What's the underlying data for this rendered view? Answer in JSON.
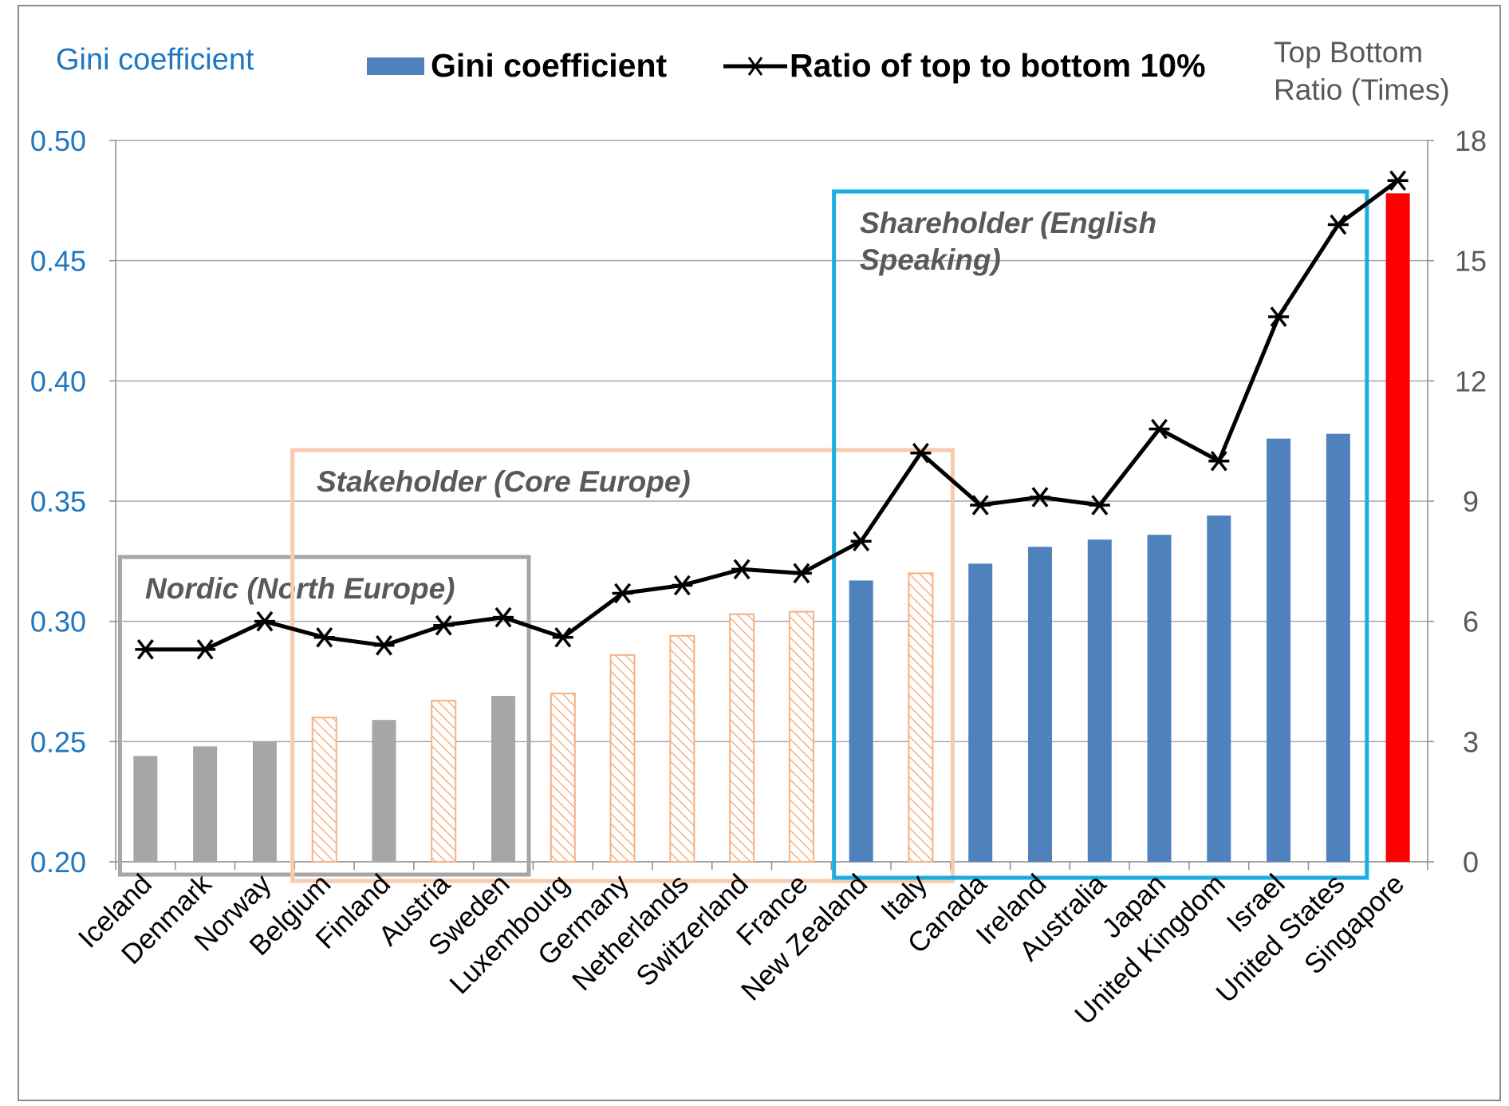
{
  "chart_data": {
    "type": "bar+line",
    "y_left_title": "Gini coefficient",
    "y_right_title": [
      "Top Bottom",
      "Ratio (Times)"
    ],
    "y_left_lim": [
      0.2,
      0.5
    ],
    "y_left_ticks": [
      "0.50",
      "0.45",
      "0.40",
      "0.35",
      "0.30",
      "0.25",
      "0.20"
    ],
    "y_right_lim": [
      0,
      18
    ],
    "y_right_ticks": [
      "18",
      "15",
      "12",
      "9",
      "6",
      "3",
      "0"
    ],
    "grid": true,
    "legend": {
      "placement": "top",
      "entries": [
        "Gini coefficient",
        "Ratio of top to bottom 10%"
      ]
    },
    "categories": [
      "Iceland",
      "Denmark",
      "Norway",
      "Belgium",
      "Finland",
      "Austria",
      "Sweden",
      "Luxembourg",
      "Germany",
      "Netherlands",
      "Switzerland",
      "France",
      "New Zealand",
      "Italy",
      "Canada",
      "Ireland",
      "Australia",
      "Japan",
      "United Kingdom",
      "Israel",
      "United States",
      "Singapore"
    ],
    "series": [
      {
        "name": "Gini coefficient",
        "type": "bar",
        "axis": "left",
        "values": [
          0.244,
          0.248,
          0.25,
          0.26,
          0.259,
          0.267,
          0.269,
          0.27,
          0.286,
          0.294,
          0.303,
          0.304,
          0.317,
          0.32,
          0.324,
          0.331,
          0.334,
          0.336,
          0.344,
          0.376,
          0.378,
          0.478
        ]
      },
      {
        "name": "Ratio of top to bottom 10%",
        "type": "line",
        "axis": "right",
        "values": [
          5.3,
          5.3,
          6.0,
          5.6,
          5.4,
          5.9,
          6.1,
          5.6,
          6.7,
          6.9,
          7.3,
          7.2,
          8.0,
          10.2,
          8.9,
          9.1,
          8.9,
          10.8,
          10.0,
          13.6,
          15.9,
          17.0
        ]
      }
    ],
    "bar_styles": [
      "gray",
      "gray",
      "gray",
      "hatch",
      "gray",
      "hatch",
      "gray",
      "hatch",
      "hatch",
      "hatch",
      "hatch",
      "hatch",
      "blue",
      "hatch",
      "blue",
      "blue",
      "blue",
      "blue",
      "blue",
      "blue",
      "blue",
      "red"
    ],
    "colors": {
      "gray": "#a6a6a6",
      "blue": "#4f81bd",
      "hatch": "#f4b183",
      "red": "#ff0000",
      "line": "#000000",
      "nordic_box": "#a6a6a6",
      "stakeholder_box": "#f8cbad",
      "shareholder_box": "#1aaee0",
      "left_axis_text": "#1f77c0",
      "right_axis_text": "#595959",
      "grid": "#a6a6a6"
    },
    "annotations": [
      {
        "text": [
          "Nordic (North Europe)"
        ],
        "from": "Iceland",
        "to": "Sweden",
        "color": "nordic_box"
      },
      {
        "text": [
          "Stakeholder (Core Europe)"
        ],
        "from": "Belgium",
        "to": "Italy",
        "color": "stakeholder_box"
      },
      {
        "text": [
          "Shareholder (English",
          "Speaking)"
        ],
        "from": "New Zealand",
        "to": "United States",
        "color": "shareholder_box"
      }
    ]
  }
}
